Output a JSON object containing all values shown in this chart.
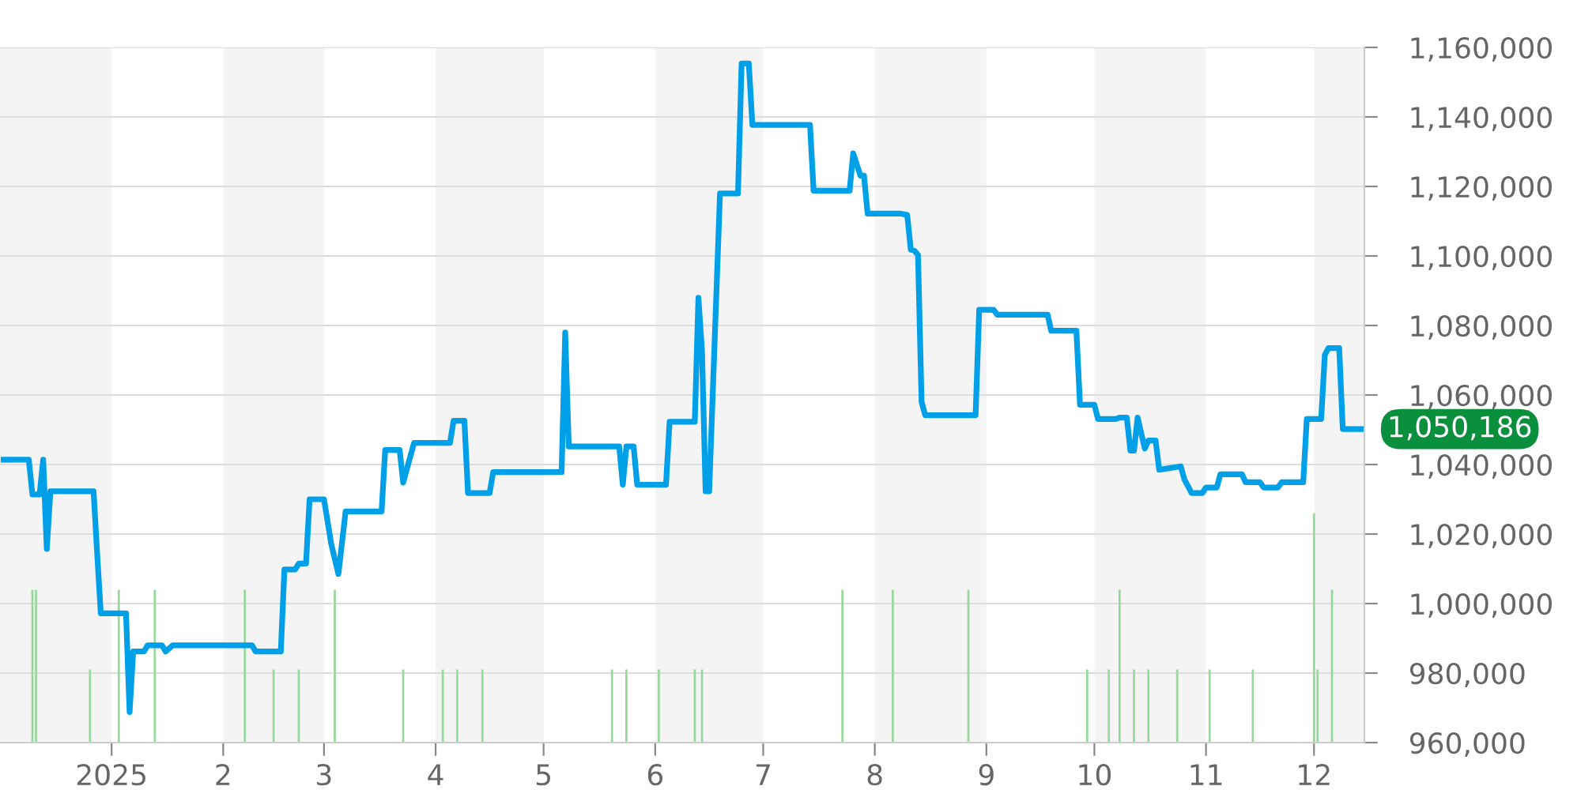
{
  "chart_data": {
    "type": "line",
    "xlim": [
      "2024-12-01",
      "2025-12-15"
    ],
    "xticks": [
      {
        "value": "2025-01-01",
        "label": "2025"
      },
      {
        "value": "2025-02-01",
        "label": "2"
      },
      {
        "value": "2025-03-01",
        "label": "3"
      },
      {
        "value": "2025-04-01",
        "label": "4"
      },
      {
        "value": "2025-05-01",
        "label": "5"
      },
      {
        "value": "2025-06-01",
        "label": "6"
      },
      {
        "value": "2025-07-01",
        "label": "7"
      },
      {
        "value": "2025-08-01",
        "label": "8"
      },
      {
        "value": "2025-09-01",
        "label": "9"
      },
      {
        "value": "2025-10-01",
        "label": "10"
      },
      {
        "value": "2025-11-01",
        "label": "11"
      },
      {
        "value": "2025-12-01",
        "label": "12"
      }
    ],
    "ylim": [
      960000,
      1160000
    ],
    "yticks": [
      {
        "value": 960000,
        "label": "960,000"
      },
      {
        "value": 980000,
        "label": "980,000"
      },
      {
        "value": 1000000,
        "label": "1,000,000"
      },
      {
        "value": 1020000,
        "label": "1,020,000"
      },
      {
        "value": 1040000,
        "label": "1,040,000"
      },
      {
        "value": 1060000,
        "label": "1,060,000"
      },
      {
        "value": 1080000,
        "label": "1,080,000"
      },
      {
        "value": 1100000,
        "label": "1,100,000"
      },
      {
        "value": 1120000,
        "label": "1,120,000"
      },
      {
        "value": 1140000,
        "label": "1,140,000"
      },
      {
        "value": 1160000,
        "label": "1,160,000"
      }
    ],
    "grid": "y",
    "legend": false,
    "marker": "none",
    "line_style": "solid",
    "bands": [
      {
        "axis": "x",
        "from": "2024-12-01",
        "to": "2025-01-01",
        "color": "#f4f4f4"
      },
      {
        "axis": "x",
        "from": "2025-02-01",
        "to": "2025-03-01",
        "color": "#f4f4f4"
      },
      {
        "axis": "x",
        "from": "2025-04-01",
        "to": "2025-05-01",
        "color": "#f4f4f4"
      },
      {
        "axis": "x",
        "from": "2025-06-01",
        "to": "2025-07-01",
        "color": "#f4f4f4"
      },
      {
        "axis": "x",
        "from": "2025-08-01",
        "to": "2025-09-01",
        "color": "#f4f4f4"
      },
      {
        "axis": "x",
        "from": "2025-10-01",
        "to": "2025-11-01",
        "color": "#f4f4f4"
      },
      {
        "axis": "x",
        "from": "2025-12-01",
        "to": "2025-12-15",
        "color": "#f4f4f4"
      }
    ],
    "series": [
      {
        "type": "bar",
        "color": "#97d89c",
        "x": [
          "2024-12-10",
          "2024-12-11",
          "2024-12-26",
          "2025-01-03",
          "2025-01-13",
          "2025-02-07",
          "2025-02-15",
          "2025-02-22",
          "2025-03-04",
          "2025-03-23",
          "2025-04-03",
          "2025-04-07",
          "2025-04-14",
          "2025-05-20",
          "2025-05-24",
          "2025-06-02",
          "2025-06-12",
          "2025-06-14",
          "2025-07-23",
          "2025-08-06",
          "2025-08-27",
          "2025-09-29",
          "2025-10-05",
          "2025-10-08",
          "2025-10-12",
          "2025-10-16",
          "2025-10-24",
          "2025-11-02",
          "2025-11-14",
          "2025-12-01",
          "2025-12-02",
          "2025-12-06"
        ],
        "values": [
          1004000,
          1004000,
          981000,
          1004000,
          1004000,
          1004000,
          981000,
          981000,
          1004000,
          981000,
          981000,
          981000,
          981000,
          981000,
          981000,
          981000,
          981000,
          981000,
          1004000,
          1004000,
          1004000,
          981000,
          981000,
          1004000,
          981000,
          981000,
          981000,
          981000,
          981000,
          1026000,
          981000,
          1004000
        ]
      },
      {
        "color": "#00a0e9",
        "x": [
          "2024-12-02",
          "2024-12-09",
          "2024-12-10",
          "2024-12-12",
          "2024-12-13",
          "2024-12-14",
          "2024-12-15",
          "2024-12-27",
          "2024-12-28",
          "2024-12-29",
          "2025-01-05",
          "2025-01-06",
          "2025-01-07",
          "2025-01-10",
          "2025-01-11",
          "2025-01-15",
          "2025-01-16",
          "2025-01-18",
          "2025-02-09",
          "2025-02-10",
          "2025-02-17",
          "2025-02-18",
          "2025-02-21",
          "2025-02-22",
          "2025-02-24",
          "2025-02-25",
          "2025-03-01",
          "2025-03-03",
          "2025-03-05",
          "2025-03-07",
          "2025-03-17",
          "2025-03-18",
          "2025-03-22",
          "2025-03-23",
          "2025-03-26",
          "2025-04-05",
          "2025-04-06",
          "2025-04-09",
          "2025-04-10",
          "2025-04-16",
          "2025-04-17",
          "2025-05-06",
          "2025-05-07",
          "2025-05-08",
          "2025-05-22",
          "2025-05-23",
          "2025-05-24",
          "2025-05-26",
          "2025-05-27",
          "2025-06-04",
          "2025-06-05",
          "2025-06-12",
          "2025-06-13",
          "2025-06-14",
          "2025-06-15",
          "2025-06-16",
          "2025-06-19",
          "2025-06-24",
          "2025-06-25",
          "2025-06-27",
          "2025-06-28",
          "2025-07-14",
          "2025-07-15",
          "2025-07-25",
          "2025-07-26",
          "2025-07-28",
          "2025-07-29",
          "2025-07-30",
          "2025-08-08",
          "2025-08-10",
          "2025-08-11",
          "2025-08-12",
          "2025-08-13",
          "2025-08-14",
          "2025-08-15",
          "2025-08-29",
          "2025-08-30",
          "2025-09-03",
          "2025-09-04",
          "2025-09-18",
          "2025-09-19",
          "2025-09-26",
          "2025-09-27",
          "2025-10-01",
          "2025-10-02",
          "2025-10-07",
          "2025-10-08",
          "2025-10-10",
          "2025-10-11",
          "2025-10-12",
          "2025-10-13",
          "2025-10-15",
          "2025-10-16",
          "2025-10-18",
          "2025-10-19",
          "2025-10-25",
          "2025-10-26",
          "2025-10-28",
          "2025-10-31",
          "2025-11-01",
          "2025-11-04",
          "2025-11-05",
          "2025-11-11",
          "2025-11-12",
          "2025-11-16",
          "2025-11-17",
          "2025-11-21",
          "2025-11-22",
          "2025-11-28",
          "2025-11-29",
          "2025-12-03",
          "2025-12-04",
          "2025-12-05",
          "2025-12-08",
          "2025-12-09",
          "2025-12-14"
        ],
        "values": [
          1041400,
          1041400,
          1031400,
          1031400,
          1041400,
          1015700,
          1032300,
          1032300,
          1014200,
          997200,
          997200,
          968800,
          986200,
          986200,
          988000,
          988000,
          986200,
          988000,
          988000,
          986200,
          986200,
          1009800,
          1009800,
          1011500,
          1011500,
          1030000,
          1030000,
          1017200,
          1008500,
          1026500,
          1026500,
          1044200,
          1044200,
          1034800,
          1046200,
          1046200,
          1052600,
          1052600,
          1031800,
          1031800,
          1037800,
          1037800,
          1078000,
          1045200,
          1045200,
          1034200,
          1045200,
          1045200,
          1034200,
          1034200,
          1052300,
          1052300,
          1088000,
          1072600,
          1032300,
          1032300,
          1118000,
          1118000,
          1155400,
          1155400,
          1137700,
          1137700,
          1118800,
          1118800,
          1129500,
          1123100,
          1123100,
          1112200,
          1112200,
          1111800,
          1101800,
          1101500,
          1100300,
          1058000,
          1054200,
          1054200,
          1084500,
          1084500,
          1083100,
          1083100,
          1078500,
          1078500,
          1057200,
          1057200,
          1053100,
          1053100,
          1053500,
          1053500,
          1044000,
          1044000,
          1053500,
          1044600,
          1046900,
          1046900,
          1038500,
          1039500,
          1035700,
          1031800,
          1031800,
          1033400,
          1033400,
          1037200,
          1037200,
          1034900,
          1034900,
          1033400,
          1033400,
          1034900,
          1034900,
          1053100,
          1053100,
          1071500,
          1073500,
          1073500,
          1050186,
          1050186
        ]
      }
    ],
    "annotations": [
      {
        "text": "1,050,186",
        "x": "2025-12-14",
        "y": 1050186
      }
    ]
  }
}
